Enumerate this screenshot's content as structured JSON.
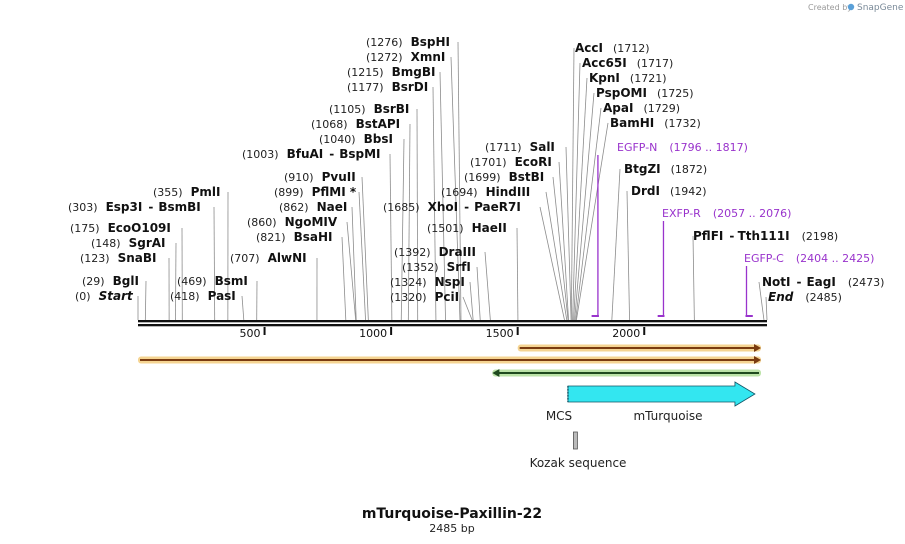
{
  "brand": {
    "prefix": "Created by",
    "name": "SnapGene"
  },
  "title": "mTurquoise-Paxillin-22",
  "length_label": "2485 bp",
  "total_bp": 2485,
  "tick_labels": [
    "500",
    "1000",
    "1500",
    "2000"
  ],
  "tick_values": [
    500,
    1000,
    1500,
    2000
  ],
  "sites": [
    {
      "pos": "(1276)",
      "name": "BspHI",
      "bp": 1276
    },
    {
      "pos": "(1272)",
      "name": "XmnI",
      "bp": 1272
    },
    {
      "pos": "(1215)",
      "name": "BmgBI",
      "bp": 1215
    },
    {
      "pos": "(1177)",
      "name": "BsrDI",
      "bp": 1177
    },
    {
      "pos": "(1105)",
      "name": "BsrBI",
      "bp": 1105
    },
    {
      "pos": "(1068)",
      "name": "BstAPI",
      "bp": 1068
    },
    {
      "pos": "(1040)",
      "name": "BbsI",
      "bp": 1040
    },
    {
      "pos": "(1003)",
      "name": "BfuAI",
      "name2": "BspMI",
      "bp": 1003
    },
    {
      "pos": "(910)",
      "name": "PvuII",
      "bp": 910
    },
    {
      "pos": "(899)",
      "name": "PflMI *",
      "bp": 899
    },
    {
      "pos": "(862)",
      "name": "NaeI",
      "bp": 862
    },
    {
      "pos": "(860)",
      "name": "NgoMIV",
      "bp": 860
    },
    {
      "pos": "(821)",
      "name": "BsaHI",
      "bp": 821
    },
    {
      "pos": "(707)",
      "name": "AlwNI",
      "bp": 707
    },
    {
      "pos": "(355)",
      "name": "PmlI",
      "bp": 355
    },
    {
      "pos": "(303)",
      "name": "Esp3I",
      "name2": "BsmBI",
      "bp": 303
    },
    {
      "pos": "(175)",
      "name": "EcoO109I",
      "bp": 175
    },
    {
      "pos": "(148)",
      "name": "SgrAI",
      "bp": 148
    },
    {
      "pos": "(123)",
      "name": "SnaBI",
      "bp": 123
    },
    {
      "pos": "(29)",
      "name": "BglI",
      "bp": 29
    },
    {
      "pos": "(0)",
      "name": "Start",
      "italic": true,
      "bp": 0
    },
    {
      "pos": "(469)",
      "name": "BsmI",
      "bp": 469
    },
    {
      "pos": "(418)",
      "name": "PasI",
      "bp": 418
    },
    {
      "pos": "(1711)",
      "name": "SalI",
      "bp": 1711
    },
    {
      "pos": "(1701)",
      "name": "EcoRI",
      "bp": 1701
    },
    {
      "pos": "(1699)",
      "name": "BstBI",
      "bp": 1699
    },
    {
      "pos": "(1694)",
      "name": "HindIII",
      "bp": 1694
    },
    {
      "pos": "(1685)",
      "name": "XhoI",
      "name2": "PaeR7I",
      "bp": 1685
    },
    {
      "pos": "(1501)",
      "name": "HaeII",
      "bp": 1501
    },
    {
      "pos": "(1392)",
      "name": "DraIII",
      "bp": 1392
    },
    {
      "pos": "(1352)",
      "name": "SrfI",
      "bp": 1352
    },
    {
      "pos": "(1324)",
      "name": "NspI",
      "bp": 1324
    },
    {
      "pos": "(1320)",
      "name": "PciI",
      "bp": 1320
    },
    {
      "pos": "(1712)",
      "name": "AccI",
      "bp": 1712
    },
    {
      "pos": "(1717)",
      "name": "Acc65I",
      "bp": 1717
    },
    {
      "pos": "(1721)",
      "name": "KpnI",
      "bp": 1721
    },
    {
      "pos": "(1725)",
      "name": "PspOMI",
      "bp": 1725
    },
    {
      "pos": "(1729)",
      "name": "ApaI",
      "bp": 1729
    },
    {
      "pos": "(1732)",
      "name": "BamHI",
      "bp": 1732
    },
    {
      "pos": "(1872)",
      "name": "BtgZI",
      "bp": 1872
    },
    {
      "pos": "(1942)",
      "name": "DrdI",
      "bp": 1942
    },
    {
      "pos": "(2198)",
      "name": "PflFI",
      "name2": "Tth111I",
      "bp": 2198
    },
    {
      "pos": "(2473)",
      "name": "NotI",
      "name2": "EagI",
      "bp": 2473
    },
    {
      "pos": "(2485)",
      "name": "End",
      "italic": true,
      "bp": 2485
    }
  ],
  "primers": [
    {
      "name": "EGFP-N",
      "range": "(1796 .. 1817)",
      "start": 1796,
      "end": 1817,
      "dir": "reverse"
    },
    {
      "name": "EXFP-R",
      "range": "(2057 .. 2076)",
      "start": 2057,
      "end": 2076,
      "dir": "reverse"
    },
    {
      "name": "EGFP-C",
      "range": "(2404 .. 2425)",
      "start": 2404,
      "end": 2425,
      "dir": "forward"
    }
  ],
  "features": [
    {
      "name": "MCS",
      "start": 1694,
      "end": 1747,
      "color": "#a9c8f5"
    },
    {
      "name": "mTurquoise",
      "start": 1746,
      "end": 2465,
      "color": "#33e6f0"
    },
    {
      "name": "Kozak sequence",
      "start": 1736,
      "end": 1746,
      "color": "#999999"
    }
  ],
  "orfs": [
    {
      "start": 1500,
      "end": 2485,
      "dir": "forward",
      "color": "#7a3b10",
      "glow": "#f2c66d"
    },
    {
      "start": 0,
      "end": 2485,
      "dir": "forward",
      "color": "#7a3b10",
      "glow": "#f2c66d"
    },
    {
      "start": 1400,
      "end": 2485,
      "dir": "reverse",
      "color": "#1f4a1f",
      "glow": "#a6d98b"
    }
  ],
  "colors": {
    "primer": "#9933cc",
    "backbone": "#111111",
    "leader": "#8c8c8c"
  }
}
